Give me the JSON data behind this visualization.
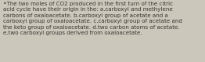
{
  "text": "•The two moles of CO2 produced in the first turn of the citric\nacid cycle have their origin in the: a.carboxyl and methylene\ncarbons of oxaloacetate. b.carboxyl group of acetate and a\ncarboxyl group of oxaloacetate. c.carboxyl group of acetate and\nthe keto group of oxaloacetate. d.two carbon atoms of acetate.\ne.two carboxyl groups derived from oxaloacetate.",
  "background_color": "#ccc7bb",
  "text_color": "#3a3530",
  "font_size": 5.1,
  "fig_width": 2.62,
  "fig_height": 0.79,
  "dpi": 100
}
